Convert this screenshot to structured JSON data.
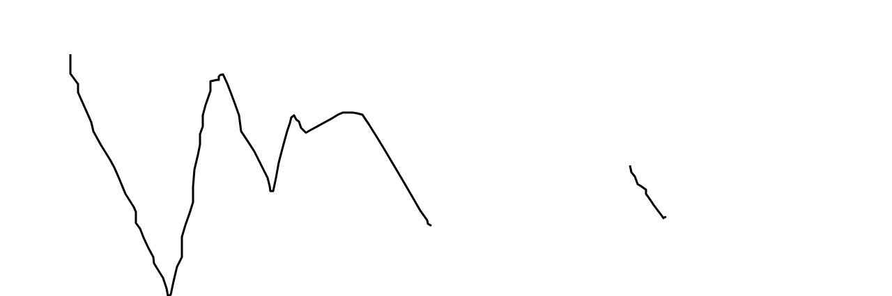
{
  "drawing": {
    "background_color": "#ffffff",
    "stroke_color": "#000000",
    "strokes": [
      {
        "id": "stroke-main"
      },
      {
        "id": "stroke-small"
      }
    ]
  }
}
